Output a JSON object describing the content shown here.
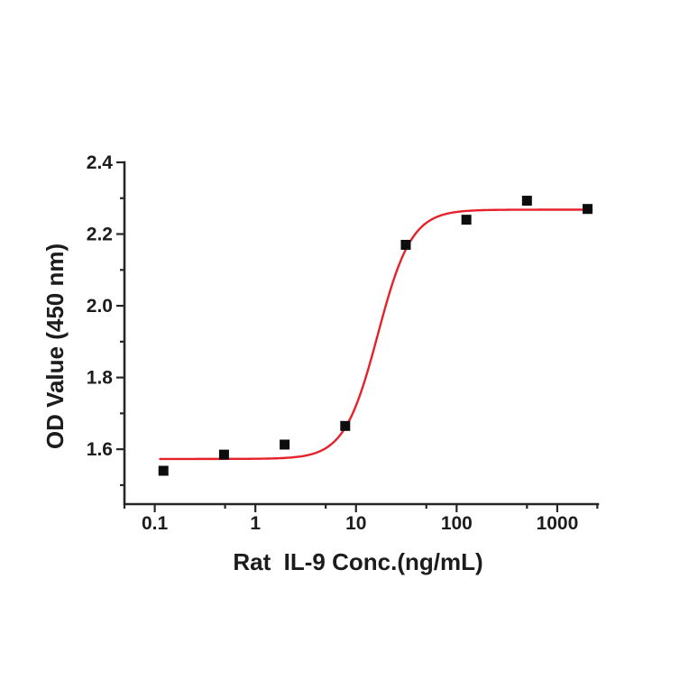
{
  "figure": {
    "background_color": "#ffffff"
  },
  "chart_data": {
    "type": "scatter",
    "title": "",
    "xlabel": "Rat  IL-9 Conc.(ng/mL)",
    "ylabel": "OD Value (450 nm)",
    "x_scale": "log10",
    "xlim": [
      0.05,
      2535
    ],
    "ylim": [
      1.447,
      2.4
    ],
    "grid": false,
    "legend": "none",
    "axis_color": "#262626",
    "text_color": "#1c1c1c",
    "x_axis": {
      "major_values": [
        0.1,
        1,
        10,
        100,
        1000
      ],
      "major_labels": [
        "0.1",
        "1",
        "10",
        "100",
        "1000"
      ],
      "minor_values": [
        0.05,
        0.5,
        5,
        50,
        500,
        2500
      ]
    },
    "y_axis": {
      "major_values": [
        2.4,
        2.2,
        2.0,
        1.8,
        1.6
      ],
      "major_labels": [
        "2.4",
        "2.2",
        "2.0",
        "1.8",
        "1.6"
      ],
      "minor_values": [
        2.3,
        2.1,
        1.9,
        1.7,
        1.5
      ]
    },
    "series": [
      {
        "name": "OD measurements",
        "type": "scatter",
        "marker": "square",
        "marker_color": "#0d0d0d",
        "marker_size": 11,
        "x": [
          0.122,
          0.488,
          1.953,
          7.813,
          31.25,
          125,
          500,
          2000
        ],
        "y": [
          1.54,
          1.585,
          1.613,
          1.665,
          2.17,
          2.24,
          2.293,
          2.27
        ]
      },
      {
        "name": "4PL fit curve",
        "type": "fit-curve",
        "color": "#e62129",
        "model": "4PL",
        "params": {
          "bottom": 1.573,
          "top": 2.268,
          "ec50": 16.5,
          "hill": 2.6
        },
        "x_range": [
          0.113,
          2200
        ]
      }
    ]
  }
}
